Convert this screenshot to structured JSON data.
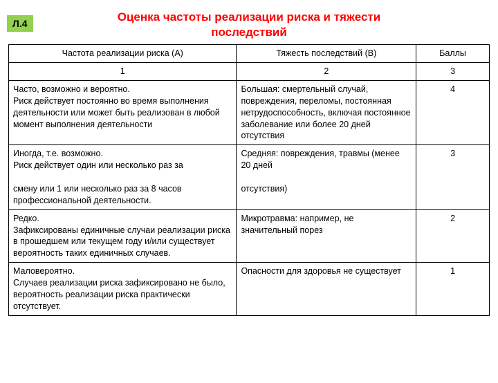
{
  "badge": "Л.4",
  "title_line1": "Оценка частоты реализации риска и тяжести",
  "title_line2": "последствий",
  "headers": {
    "a": "Частота реализации риска (А)",
    "b": "Тяжесть последствий (В)",
    "c": "Баллы",
    "na": "1",
    "nb": "2",
    "nc": "3"
  },
  "rows": [
    {
      "a": "Часто, возможно и вероятно.\nРиск действует постоянно во время выполнения деятельности или может быть реализован в любой момент выполнения деятельности",
      "b": "Большая: смертельный случай, повреждения, переломы, постоянная нетрудоспособность, включая постоянное заболевание или более 20 дней отсутствия",
      "c": "4"
    },
    {
      "a": "Иногда, т.е. возможно.\nРиск действует один или несколько раз за\n\nсмену или 1 или несколько раз за 8 часов профессиональной деятельности.",
      "b": "Средняя:  повреждения, травмы (менее 20 дней\n\nотсутствия)",
      "c": "3"
    },
    {
      "a": "Редко.\nЗафиксированы единичные случаи реализации риска в прошедшем или текущем году и/или существует вероятность таких единичных случаев.",
      "b": "Микротравма: например, не значительный порез",
      "c": "2"
    },
    {
      "a": "Маловероятно.\nСлучаев реализации риска зафиксировано не было, вероятность реализации риска практически отсутствует.",
      "b": "Опасности для здоровья не существует",
      "c": "1"
    }
  ]
}
